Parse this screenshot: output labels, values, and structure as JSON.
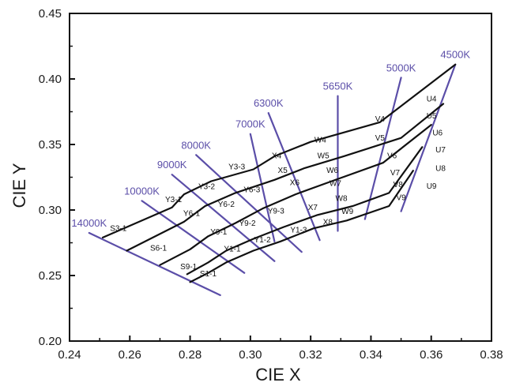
{
  "chart_data": {
    "type": "line",
    "title": "",
    "xlabel": "CIE X",
    "ylabel": "CIE Y",
    "xlim": [
      0.24,
      0.38
    ],
    "ylim": [
      0.2,
      0.45
    ],
    "x_ticks": [
      "0.24",
      "0.26",
      "0.28",
      "0.30",
      "0.32",
      "0.34",
      "0.36",
      "0.38"
    ],
    "y_ticks": [
      "0.20",
      "0.25",
      "0.30",
      "0.35",
      "0.40",
      "0.45"
    ],
    "colors": {
      "cct_line": "#5b4ea8",
      "boundary": "#111111",
      "axis": "#111111"
    },
    "cct_lines": [
      {
        "label": "14000K",
        "from": [
          0.2465,
          0.2825
        ],
        "to": [
          0.29,
          0.235
        ]
      },
      {
        "label": "10000K",
        "from": [
          0.264,
          0.307
        ],
        "to": [
          0.298,
          0.252
        ]
      },
      {
        "label": "9000K",
        "from": [
          0.274,
          0.327
        ],
        "to": [
          0.308,
          0.261
        ]
      },
      {
        "label": "8000K",
        "from": [
          0.282,
          0.342
        ],
        "to": [
          0.317,
          0.268
        ]
      },
      {
        "label": "7000K",
        "from": [
          0.3,
          0.358
        ],
        "to": [
          0.308,
          0.276
        ]
      },
      {
        "label": "6300K",
        "from": [
          0.306,
          0.374
        ],
        "to": [
          0.323,
          0.277
        ]
      },
      {
        "label": "5650K",
        "from": [
          0.329,
          0.387
        ],
        "to": [
          0.329,
          0.284
        ]
      },
      {
        "label": "5000K",
        "from": [
          0.35,
          0.401
        ],
        "to": [
          0.338,
          0.293
        ]
      },
      {
        "label": "4500K",
        "from": [
          0.368,
          0.411
        ],
        "to": [
          0.35,
          0.299
        ]
      }
    ],
    "bin_boundaries": [
      [
        [
          0.251,
          0.279
        ],
        [
          0.274,
          0.302
        ],
        [
          0.278,
          0.312
        ],
        [
          0.287,
          0.322
        ],
        [
          0.301,
          0.331
        ],
        [
          0.308,
          0.341
        ],
        [
          0.32,
          0.352
        ],
        [
          0.343,
          0.367
        ],
        [
          0.368,
          0.411
        ]
      ],
      [
        [
          0.259,
          0.269
        ],
        [
          0.278,
          0.291
        ],
        [
          0.285,
          0.303
        ],
        [
          0.295,
          0.313
        ],
        [
          0.308,
          0.323
        ],
        [
          0.318,
          0.332
        ],
        [
          0.331,
          0.341
        ],
        [
          0.35,
          0.355
        ],
        [
          0.364,
          0.381
        ]
      ],
      [
        [
          0.27,
          0.258
        ],
        [
          0.28,
          0.27
        ],
        [
          0.286,
          0.28
        ],
        [
          0.295,
          0.29
        ],
        [
          0.304,
          0.301
        ],
        [
          0.315,
          0.312
        ],
        [
          0.327,
          0.322
        ],
        [
          0.344,
          0.336
        ],
        [
          0.36,
          0.365
        ]
      ],
      [
        [
          0.279,
          0.251
        ],
        [
          0.286,
          0.26
        ],
        [
          0.292,
          0.269
        ],
        [
          0.301,
          0.278
        ],
        [
          0.311,
          0.287
        ],
        [
          0.322,
          0.296
        ],
        [
          0.334,
          0.303
        ],
        [
          0.346,
          0.313
        ],
        [
          0.357,
          0.348
        ]
      ],
      [
        [
          0.28,
          0.245
        ],
        [
          0.286,
          0.252
        ],
        [
          0.292,
          0.26
        ],
        [
          0.301,
          0.269
        ],
        [
          0.31,
          0.276
        ],
        [
          0.321,
          0.286
        ],
        [
          0.332,
          0.292
        ],
        [
          0.346,
          0.303
        ],
        [
          0.354,
          0.33
        ]
      ]
    ],
    "bin_labels": [
      {
        "text": "S3-1",
        "x": 0.2562,
        "y": 0.2855
      },
      {
        "text": "S6-1",
        "x": 0.2695,
        "y": 0.2705
      },
      {
        "text": "S9-1",
        "x": 0.2795,
        "y": 0.2565
      },
      {
        "text": "S1-1",
        "x": 0.286,
        "y": 0.251
      },
      {
        "text": "Y3-1",
        "x": 0.2745,
        "y": 0.3075
      },
      {
        "text": "Y6-1",
        "x": 0.2805,
        "y": 0.297
      },
      {
        "text": "Y9-1",
        "x": 0.2895,
        "y": 0.283
      },
      {
        "text": "Y1-1",
        "x": 0.294,
        "y": 0.27
      },
      {
        "text": "Y3-2",
        "x": 0.2855,
        "y": 0.3175
      },
      {
        "text": "Y6-2",
        "x": 0.292,
        "y": 0.304
      },
      {
        "text": "Y9-2",
        "x": 0.299,
        "y": 0.2895
      },
      {
        "text": "Y1-2",
        "x": 0.304,
        "y": 0.277
      },
      {
        "text": "Y3-3",
        "x": 0.2955,
        "y": 0.3325
      },
      {
        "text": "Y6-3",
        "x": 0.3005,
        "y": 0.315
      },
      {
        "text": "Y9-3",
        "x": 0.3085,
        "y": 0.299
      },
      {
        "text": "Y1-3",
        "x": 0.316,
        "y": 0.2845
      },
      {
        "text": "X4",
        "x": 0.3087,
        "y": 0.341
      },
      {
        "text": "X5",
        "x": 0.3107,
        "y": 0.33
      },
      {
        "text": "X6",
        "x": 0.3147,
        "y": 0.3205
      },
      {
        "text": "X7",
        "x": 0.3207,
        "y": 0.3015
      },
      {
        "text": "X8",
        "x": 0.3257,
        "y": 0.2905
      },
      {
        "text": "W4",
        "x": 0.3232,
        "y": 0.353
      },
      {
        "text": "W5",
        "x": 0.3242,
        "y": 0.341
      },
      {
        "text": "W6",
        "x": 0.3272,
        "y": 0.33
      },
      {
        "text": "W7",
        "x": 0.3282,
        "y": 0.32
      },
      {
        "text": "W8",
        "x": 0.3302,
        "y": 0.3085
      },
      {
        "text": "W9",
        "x": 0.3322,
        "y": 0.2985
      },
      {
        "text": "V4",
        "x": 0.343,
        "y": 0.369
      },
      {
        "text": "V5",
        "x": 0.343,
        "y": 0.3545
      },
      {
        "text": "V6",
        "x": 0.347,
        "y": 0.341
      },
      {
        "text": "V7",
        "x": 0.348,
        "y": 0.328
      },
      {
        "text": "V8",
        "x": 0.349,
        "y": 0.319
      },
      {
        "text": "V9",
        "x": 0.35,
        "y": 0.309
      },
      {
        "text": "U4",
        "x": 0.3601,
        "y": 0.3845
      },
      {
        "text": "U5",
        "x": 0.3601,
        "y": 0.3715
      },
      {
        "text": "U6",
        "x": 0.3621,
        "y": 0.3585
      },
      {
        "text": "U7",
        "x": 0.3631,
        "y": 0.3455
      },
      {
        "text": "U8",
        "x": 0.3631,
        "y": 0.3315
      },
      {
        "text": "U9",
        "x": 0.3601,
        "y": 0.318
      }
    ]
  }
}
